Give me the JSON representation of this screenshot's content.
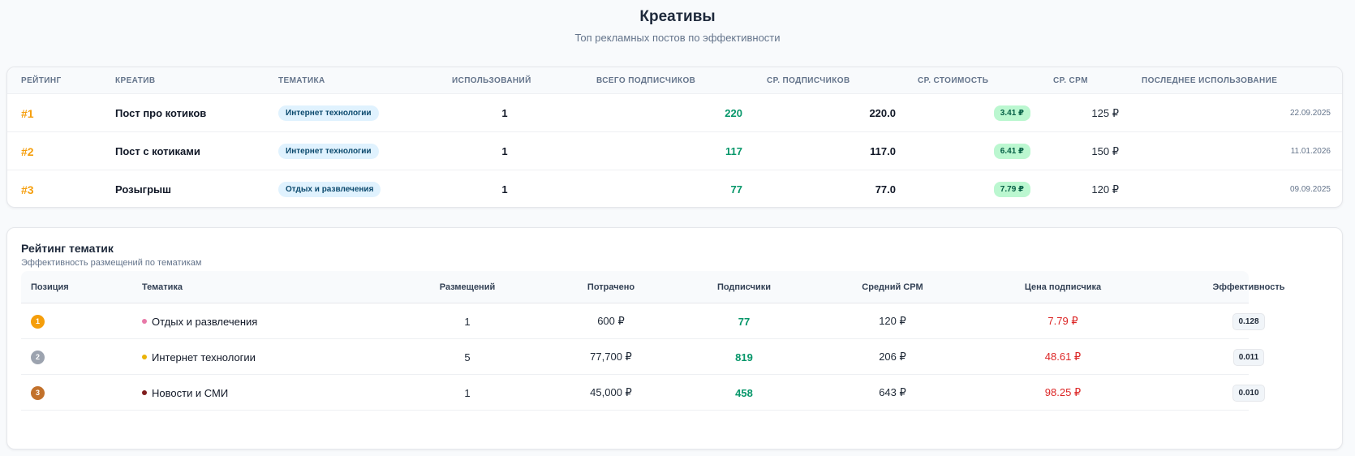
{
  "header": {
    "title": "Креативы",
    "subtitle": "Топ рекламных постов по эффективности"
  },
  "creatives": {
    "columns": {
      "rating": "Рейтинг",
      "creative": "Креатив",
      "topic": "Тематика",
      "uses": "Использований",
      "total_subs": "Всего подписчиков",
      "avg_subs": "Ср. подписчиков",
      "avg_cost": "Ср. стоимость",
      "avg_cpm": "Ср. CPM",
      "last_used": "Последнее использование"
    },
    "rows": [
      {
        "rank": "#1",
        "name": "Пост про котиков",
        "topic": "Интернет технологии",
        "uses": "1",
        "total_subs": "220",
        "avg_subs": "220.0",
        "avg_cost": "3.41 ₽",
        "avg_cpm": "125 ₽",
        "last_used": "22.09.2025"
      },
      {
        "rank": "#2",
        "name": "Пост с котиками",
        "topic": "Интернет технологии",
        "uses": "1",
        "total_subs": "117",
        "avg_subs": "117.0",
        "avg_cost": "6.41 ₽",
        "avg_cpm": "150 ₽",
        "last_used": "11.01.2026"
      },
      {
        "rank": "#3",
        "name": "Розыгрыш",
        "topic": "Отдых и развлечения",
        "uses": "1",
        "total_subs": "77",
        "avg_subs": "77.0",
        "avg_cost": "7.79 ₽",
        "avg_cpm": "120 ₽",
        "last_used": "09.09.2025"
      }
    ]
  },
  "topics": {
    "title": "Рейтинг тематик",
    "subtitle": "Эффективность размещений по тематикам",
    "columns": {
      "position": "Позиция",
      "topic": "Тематика",
      "placements": "Размещений",
      "spent": "Потрачено",
      "subscribers": "Подписчики",
      "avg_cpm": "Средний CPM",
      "sub_price": "Цена подписчика",
      "efficiency": "Эффективность"
    },
    "rows": [
      {
        "position": "1",
        "badge_color": "#f59e0b",
        "dot_color": "#e879a8",
        "topic": "Отдых и развлечения",
        "placements": "1",
        "spent": "600 ₽",
        "subscribers": "77",
        "avg_cpm": "120 ₽",
        "sub_price": "7.79 ₽",
        "efficiency": "0.128"
      },
      {
        "position": "2",
        "badge_color": "#9ca3af",
        "dot_color": "#eab308",
        "topic": "Интернет технологии",
        "placements": "5",
        "spent": "77,700 ₽",
        "subscribers": "819",
        "avg_cpm": "206 ₽",
        "sub_price": "48.61 ₽",
        "efficiency": "0.011"
      },
      {
        "position": "3",
        "badge_color": "#c2712b",
        "dot_color": "#7f1d1d",
        "topic": "Новости и СМИ",
        "placements": "1",
        "spent": "45,000 ₽",
        "subscribers": "458",
        "avg_cpm": "643 ₽",
        "sub_price": "98.25 ₽",
        "efficiency": "0.010"
      }
    ]
  }
}
